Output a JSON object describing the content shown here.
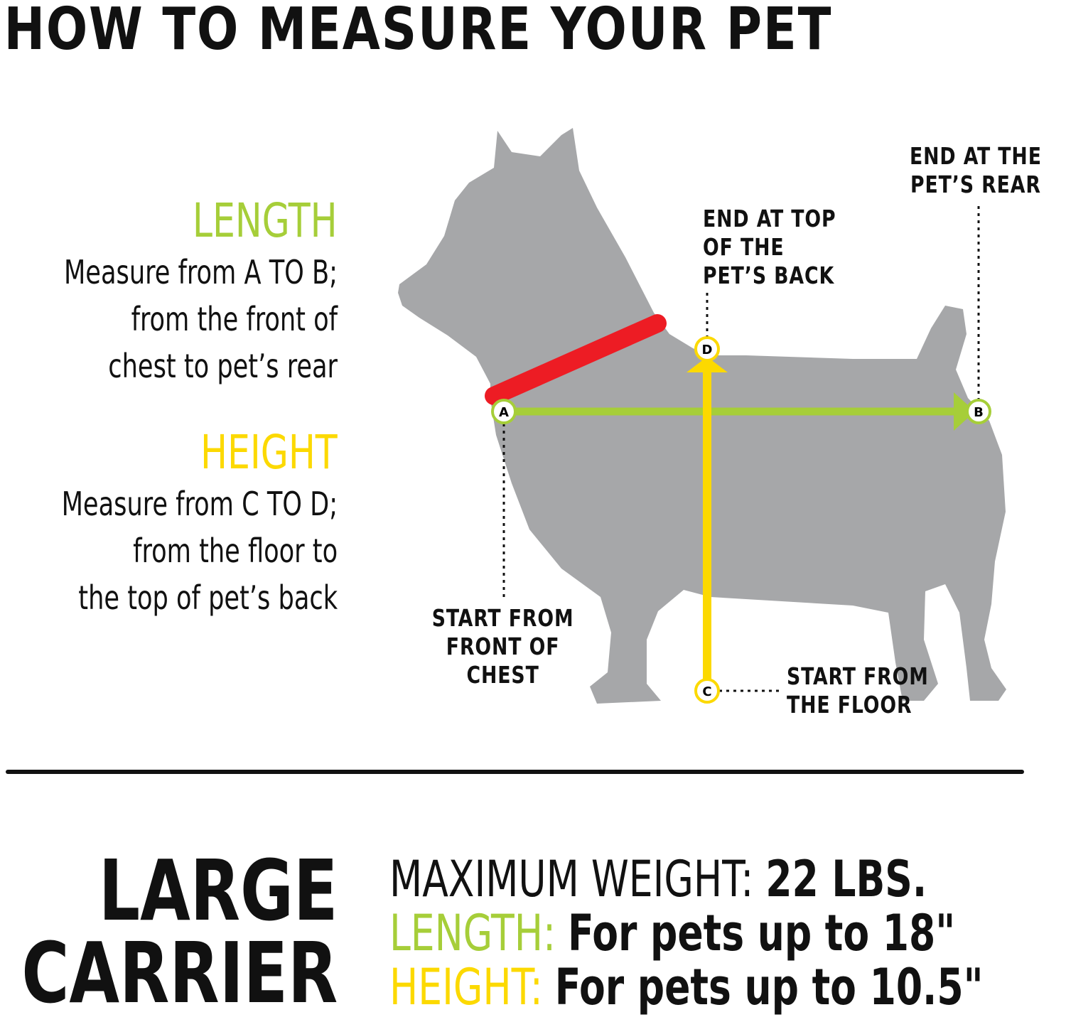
{
  "title": "HOW TO MEASURE YOUR PET",
  "colors": {
    "dog": "#a6a7a9",
    "collar": "#ed1c24",
    "length": "#a6ce39",
    "height": "#fcd900",
    "text": "#111111"
  },
  "length_info": {
    "heading": "LENGTH",
    "lines": [
      "Measure from A TO B;",
      "from the front of",
      "chest to pet’s rear"
    ]
  },
  "height_info": {
    "heading": "HEIGHT",
    "lines": [
      "Measure from C TO D;",
      "from the floor to",
      "the top of pet’s back"
    ]
  },
  "points": {
    "a": "A",
    "b": "B",
    "c": "C",
    "d": "D"
  },
  "callouts": {
    "rear": [
      "END AT THE",
      "PET’S REAR"
    ],
    "back": [
      "END AT TOP",
      "OF THE",
      "PET’S BACK"
    ],
    "chest": [
      "START FROM",
      "FRONT OF",
      "CHEST"
    ],
    "floor": [
      "START FROM",
      "THE FLOOR"
    ]
  },
  "carrier": {
    "lines": [
      "LARGE",
      "CARRIER"
    ]
  },
  "specs": {
    "weight_label": "MAXIMUM WEIGHT:",
    "weight_value": "22 LBS.",
    "length_label": "LENGTH:",
    "length_value": "For pets up to 18\"",
    "height_label": "HEIGHT:",
    "height_value": "For pets up to 10.5\""
  }
}
